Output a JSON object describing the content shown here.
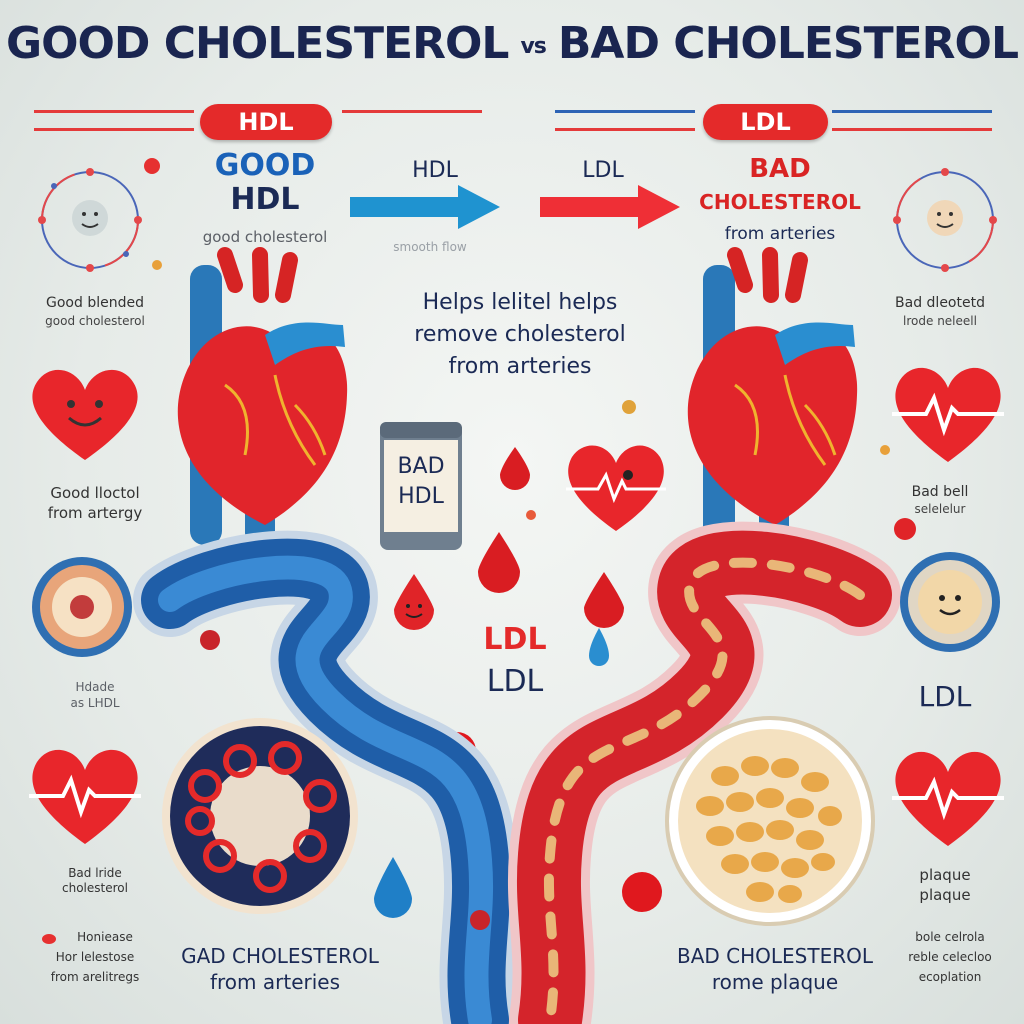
{
  "title": {
    "left": "GOOD CHOLESTEROL",
    "vs": "vs",
    "right": "BAD CHOLESTEROL"
  },
  "pills": {
    "hdl": "HDL",
    "ldl": "LDL"
  },
  "left_header": {
    "line1": "GOOD",
    "line2": "HDL",
    "sub": "good cholesterol"
  },
  "arrows": {
    "hdl_label": "HDL",
    "hdl_sub": "smooth flow",
    "ldl_label": "LDL"
  },
  "right_header": {
    "line1": "BAD",
    "line2": "CHOLESTEROL",
    "line3": "from arteries"
  },
  "center_text": {
    "line1": "Helps lelitel helps",
    "line2": "remove cholesterol",
    "line3": "from arteries"
  },
  "can_label": {
    "line1": "BAD",
    "line2": "HDL"
  },
  "center_ldl": {
    "red": "LDL",
    "dark": "LDL"
  },
  "left_side": {
    "label1_a": "Good blended",
    "label1_b": "good cholesterol",
    "label2_a": "Good lloctol",
    "label2_b": "from artergy",
    "label3_a": "Hdade",
    "label3_b": "as LHDL",
    "label4_a": "Bad lride",
    "label4_b": "cholesterol",
    "label5_a": "Honiease",
    "label5_b": "Hor lelestose",
    "label5_c": "from arelitregs"
  },
  "right_side": {
    "label1_a": "Bad dleotetd",
    "label1_b": "lrode neleell",
    "label2_a": "Bad bell",
    "label2_b": "selelelur",
    "label3": "LDL",
    "label4_a": "plaque",
    "label4_b": "plaque",
    "label5_a": "bole celrola",
    "label5_b": "reble celecloo",
    "label5_c": "ecoplation"
  },
  "bottom_left": {
    "line1": "GAD CHOLESTEROL",
    "line2": "from arteries"
  },
  "bottom_right": {
    "line1": "BAD CHOLESTEROL",
    "line2": "rome plaque"
  },
  "colors": {
    "good_blue": "#1f7ec4",
    "bad_red": "#e42a2a",
    "navy": "#1a2550",
    "heart_red": "#e8262b"
  }
}
